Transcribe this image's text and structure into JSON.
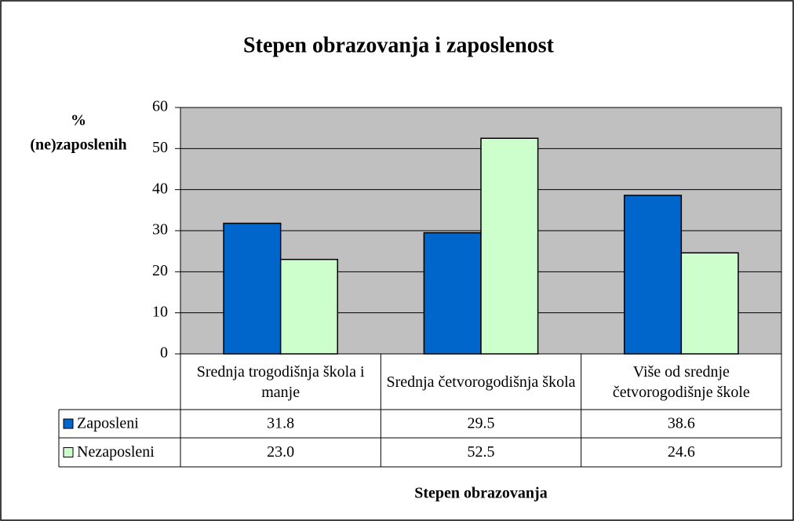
{
  "chart_data": {
    "type": "bar",
    "title": "Stepen obrazovanja i zaposlenost",
    "y_label": [
      "%",
      "(ne)zaposlenih"
    ],
    "x_label": "Stepen obrazovanja",
    "categories": [
      "Srednja trogodišnja škola i manje",
      "Srednja četvorogodišnja škola",
      "Više od srednje četvorogodišnje škole"
    ],
    "series": [
      {
        "name": "Zaposleni",
        "color": "#0066cc",
        "values": [
          31.8,
          29.5,
          38.6
        ],
        "value_labels": [
          "31.8",
          "29.5",
          "38.6"
        ]
      },
      {
        "name": "Nezaposleni",
        "color": "#ccffcc",
        "values": [
          23.0,
          52.5,
          24.6
        ],
        "value_labels": [
          "23.0",
          "52.5",
          "24.6"
        ]
      }
    ],
    "ylim": [
      0,
      60
    ],
    "yticks": [
      0,
      10,
      20,
      30,
      40,
      50,
      60
    ],
    "grid": true,
    "plot_background": "#c0c0c0"
  }
}
